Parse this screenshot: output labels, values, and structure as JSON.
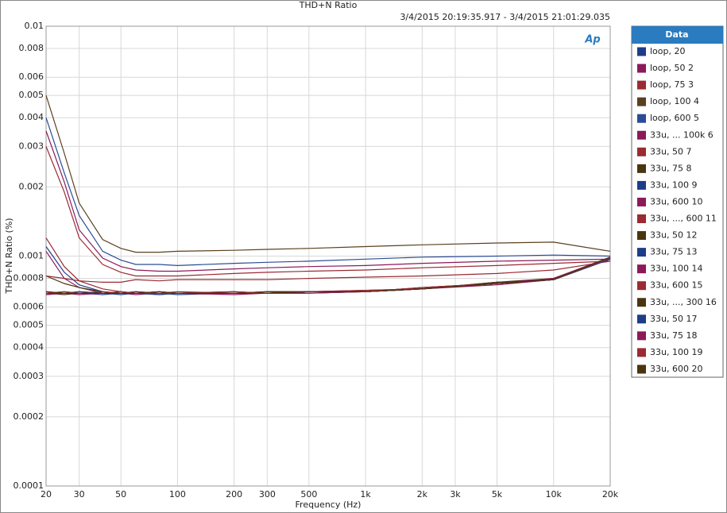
{
  "chart_data": {
    "type": "line",
    "title": "THD+N Ratio",
    "subtitle": "3/4/2015 20:19:35.917 - 3/4/2015 21:01:29.035",
    "logo": "Ap",
    "x_label": "Frequency (Hz)",
    "y_label": "THD+N Ratio (%)",
    "legend_title": "Data",
    "legend": "right",
    "log_x": true,
    "log_y": true,
    "grid": true,
    "xlim": [
      20,
      20000
    ],
    "ylim": [
      0.0001,
      0.01
    ],
    "xticks": [
      20,
      30,
      50,
      100,
      200,
      300,
      500,
      {
        "value": 1000,
        "label": "1k"
      },
      {
        "value": 2000,
        "label": "2k"
      },
      {
        "value": 3000,
        "label": "3k"
      },
      {
        "value": 5000,
        "label": "5k"
      },
      {
        "value": 10000,
        "label": "10k"
      },
      {
        "value": 20000,
        "label": "20k"
      }
    ],
    "yticks": [
      0.0001,
      0.0002,
      0.0003,
      0.0004,
      0.0005,
      0.0006,
      0.0008,
      0.001,
      0.002,
      0.003,
      0.004,
      0.005,
      0.006,
      0.008,
      0.01
    ],
    "x": [
      20,
      25,
      30,
      40,
      50,
      60,
      80,
      100,
      200,
      300,
      500,
      1000,
      2000,
      5000,
      10000,
      20000
    ],
    "series": [
      {
        "name": "loop, 20",
        "color": "#1f3c88",
        "values": [
          0.0011,
          0.00085,
          0.00075,
          0.0007,
          0.00069,
          0.00069,
          0.00069,
          0.00069,
          0.00069,
          0.00069,
          0.0007,
          0.0007,
          0.00072,
          0.00076,
          0.00079,
          0.00098
        ]
      },
      {
        "name": "loop, 50 2",
        "color": "#8b1a5a",
        "values": [
          0.0035,
          0.0021,
          0.0013,
          0.00098,
          0.0009,
          0.00087,
          0.00086,
          0.00086,
          0.00088,
          0.00089,
          0.0009,
          0.00091,
          0.00093,
          0.00095,
          0.00096,
          0.00097
        ]
      },
      {
        "name": "loop, 75 3",
        "color": "#9b2a32",
        "values": [
          0.003,
          0.0019,
          0.0012,
          0.00092,
          0.00085,
          0.00082,
          0.00082,
          0.00082,
          0.00084,
          0.00085,
          0.00086,
          0.00087,
          0.00089,
          0.00091,
          0.00093,
          0.00095
        ]
      },
      {
        "name": "loop, 100 4",
        "color": "#5a4020",
        "values": [
          0.005,
          0.0028,
          0.0017,
          0.00118,
          0.00108,
          0.00104,
          0.00104,
          0.00105,
          0.00106,
          0.00107,
          0.00108,
          0.0011,
          0.00112,
          0.00114,
          0.00115,
          0.00105
        ]
      },
      {
        "name": "loop, 600 5",
        "color": "#2a4c98",
        "values": [
          0.004,
          0.0023,
          0.0015,
          0.00105,
          0.00096,
          0.00092,
          0.00092,
          0.00091,
          0.00093,
          0.00094,
          0.00095,
          0.00097,
          0.00099,
          0.001,
          0.00101,
          0.001
        ]
      },
      {
        "name": "33u, ... 100k 6",
        "color": "#8b1a5a",
        "values": [
          0.00105,
          0.0008,
          0.00073,
          0.00069,
          0.00069,
          0.0007,
          0.00069,
          0.00069,
          0.0007,
          0.00069,
          0.0007,
          0.0007,
          0.00072,
          0.00076,
          0.00079,
          0.00097
        ]
      },
      {
        "name": "33u, 50 7",
        "color": "#9b2a32",
        "values": [
          0.0012,
          0.0009,
          0.00078,
          0.00072,
          0.0007,
          0.00069,
          0.0007,
          0.00069,
          0.00069,
          0.0007,
          0.0007,
          0.0007,
          0.00073,
          0.00076,
          0.0008,
          0.00099
        ]
      },
      {
        "name": "33u, 75 8",
        "color": "#4a3510",
        "values": [
          0.00082,
          0.00076,
          0.00073,
          0.0007,
          0.00069,
          0.00069,
          0.00068,
          0.00069,
          0.00069,
          0.00069,
          0.0007,
          0.00071,
          0.00072,
          0.00077,
          0.00079,
          0.00098
        ]
      },
      {
        "name": "33u, 100 9",
        "color": "#1f3c88",
        "values": [
          0.0007,
          0.00069,
          0.00069,
          0.00068,
          0.00069,
          0.00069,
          0.00069,
          0.00068,
          0.00069,
          0.00069,
          0.0007,
          0.0007,
          0.00072,
          0.00076,
          0.00079,
          0.00097
        ]
      },
      {
        "name": "33u, 600 10",
        "color": "#8b1a5a",
        "values": [
          0.00069,
          0.00069,
          0.0007,
          0.00069,
          0.00069,
          0.00068,
          0.00069,
          0.00069,
          0.00068,
          0.00069,
          0.00069,
          0.0007,
          0.00072,
          0.00075,
          0.00079,
          0.00098
        ]
      },
      {
        "name": "33u, ..., 600 11",
        "color": "#9b2a32",
        "values": [
          0.00082,
          0.0008,
          0.00078,
          0.00077,
          0.00077,
          0.00079,
          0.00078,
          0.00079,
          0.00079,
          0.00079,
          0.0008,
          0.00081,
          0.00082,
          0.00084,
          0.00087,
          0.00095
        ]
      },
      {
        "name": "33u, 50 12",
        "color": "#4a3510",
        "values": [
          0.00069,
          0.0007,
          0.00069,
          0.00069,
          0.0007,
          0.00069,
          0.00069,
          0.00069,
          0.00069,
          0.0007,
          0.0007,
          0.0007,
          0.00073,
          0.00076,
          0.0008,
          0.00098
        ]
      },
      {
        "name": "33u, 75 13",
        "color": "#1f3c88",
        "values": [
          0.00068,
          0.00069,
          0.00069,
          0.00069,
          0.00068,
          0.00069,
          0.0007,
          0.00069,
          0.00069,
          0.00069,
          0.0007,
          0.0007,
          0.00072,
          0.00076,
          0.00079,
          0.00097
        ]
      },
      {
        "name": "33u, 100 14",
        "color": "#8b1a5a",
        "values": [
          0.00069,
          0.00069,
          0.00068,
          0.00069,
          0.00069,
          0.0007,
          0.00069,
          0.00069,
          0.0007,
          0.00069,
          0.00069,
          0.0007,
          0.00072,
          0.00076,
          0.00079,
          0.00098
        ]
      },
      {
        "name": "33u, 600 15",
        "color": "#9b2a32",
        "values": [
          0.0007,
          0.00069,
          0.00069,
          0.0007,
          0.00069,
          0.00069,
          0.00069,
          0.0007,
          0.00069,
          0.00069,
          0.0007,
          0.00071,
          0.00072,
          0.00076,
          0.00079,
          0.00099
        ]
      },
      {
        "name": "33u, ..., 300 16",
        "color": "#4a3510",
        "values": [
          0.00069,
          0.00068,
          0.00069,
          0.00069,
          0.0007,
          0.00069,
          0.00069,
          0.00069,
          0.00069,
          0.0007,
          0.0007,
          0.0007,
          0.00072,
          0.00077,
          0.0008,
          0.00098
        ]
      },
      {
        "name": "33u, 50 17",
        "color": "#1f3c88",
        "values": [
          0.00069,
          0.00069,
          0.0007,
          0.00069,
          0.00069,
          0.00069,
          0.00068,
          0.00069,
          0.00069,
          0.00069,
          0.0007,
          0.0007,
          0.00072,
          0.00076,
          0.00079,
          0.00097
        ]
      },
      {
        "name": "33u, 75 18",
        "color": "#8b1a5a",
        "values": [
          0.00068,
          0.00069,
          0.00069,
          0.00069,
          0.00069,
          0.0007,
          0.00069,
          0.00069,
          0.00069,
          0.00069,
          0.00069,
          0.0007,
          0.00072,
          0.00076,
          0.0008,
          0.00098
        ]
      },
      {
        "name": "33u, 100 19",
        "color": "#9b2a32",
        "values": [
          0.00069,
          0.0007,
          0.00069,
          0.00069,
          0.0007,
          0.00069,
          0.00069,
          0.00069,
          0.0007,
          0.00069,
          0.0007,
          0.0007,
          0.00073,
          0.00076,
          0.00079,
          0.00098
        ]
      },
      {
        "name": "33u, 600 20",
        "color": "#4a3510",
        "values": [
          0.0007,
          0.00069,
          0.00069,
          0.00069,
          0.00069,
          0.00069,
          0.0007,
          0.00069,
          0.00069,
          0.00069,
          0.0007,
          0.0007,
          0.00072,
          0.00076,
          0.00079,
          0.00099
        ]
      }
    ]
  }
}
